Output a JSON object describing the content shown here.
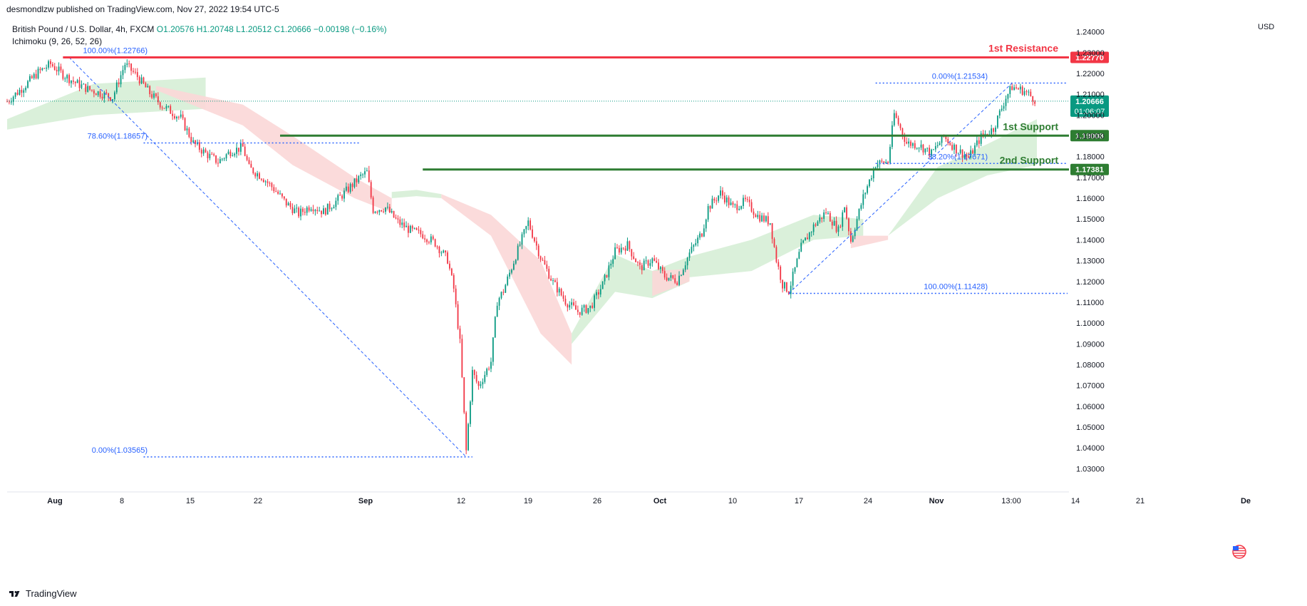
{
  "header": {
    "published_by": "desmondlzw published on TradingView.com, Nov 27, 2022 19:54 UTC-5"
  },
  "legend": {
    "symbol": "British Pound / U.S. Dollar, 4h, FXCM",
    "ohlc": "O1.20576  H1.20748  L1.20512  C1.20666  −0.00198 (−0.16%)",
    "indicator": "Ichimoku (9, 26, 52, 26)"
  },
  "currency": "USD",
  "brand": {
    "name": "TradingView",
    "icon": "tradingview-logo-icon"
  },
  "colors": {
    "up": "#089981",
    "down": "#f23645",
    "fib": "#2962ff",
    "resistance": "#f23645",
    "support": "#2e7d32",
    "cloud_bull": "#d6eed6",
    "cloud_bear": "#fbd7d7"
  },
  "chart_data": {
    "type": "candlestick",
    "y_axis": {
      "range": [
        1.025,
        1.245
      ],
      "ticks": [
        "1.24000",
        "1.23000",
        "1.22000",
        "1.21000",
        "1.20000",
        "1.19000",
        "1.18000",
        "1.17000",
        "1.16000",
        "1.15000",
        "1.14000",
        "1.13000",
        "1.12000",
        "1.11000",
        "1.10000",
        "1.09000",
        "1.08000",
        "1.07000",
        "1.06000",
        "1.05000",
        "1.04000",
        "1.03000"
      ],
      "tick_values": [
        1.24,
        1.23,
        1.22,
        1.21,
        1.2,
        1.19,
        1.18,
        1.17,
        1.16,
        1.15,
        1.14,
        1.13,
        1.12,
        1.11,
        1.1,
        1.09,
        1.08,
        1.07,
        1.06,
        1.05,
        1.04,
        1.03
      ]
    },
    "x_axis": {
      "labels": [
        "Aug",
        "8",
        "15",
        "22",
        "Sep",
        "12",
        "19",
        "26",
        "Oct",
        "10",
        "17",
        "24",
        "Nov",
        "13:00",
        "14",
        "21",
        "De"
      ],
      "bold": [
        "Aug",
        "Sep",
        "Oct",
        "Nov",
        "De"
      ]
    },
    "horizontal_levels": [
      {
        "name": "1st Resistance",
        "value": 1.2277,
        "price_label": "1.22770",
        "role": "resistance"
      },
      {
        "name": "1st Support",
        "value": 1.19008,
        "price_label": "1.19008",
        "role": "support"
      },
      {
        "name": "2nd Support",
        "value": 1.17381,
        "price_label": "1.17381",
        "role": "support"
      }
    ],
    "current_price": {
      "label": "1.20666",
      "countdown": "01:06:07",
      "value": 1.20666
    },
    "fib_down": [
      {
        "label": "100.00%(1.22766)",
        "value": 1.22766
      },
      {
        "label": "78.60%(1.18657)",
        "value": 1.18657
      },
      {
        "label": "0.00%(1.03565)",
        "value": 1.03565
      }
    ],
    "fib_up": [
      {
        "label": "0.00%(1.21534)",
        "value": 1.21534
      },
      {
        "label": "38.20%(1.17671)",
        "value": 1.17671
      },
      {
        "label": "100.00%(1.11428)",
        "value": 1.11428
      }
    ],
    "close_path": [
      [
        0,
        1.2065
      ],
      [
        3,
        1.2145
      ],
      [
        5,
        1.2205
      ],
      [
        7,
        1.2245
      ],
      [
        9,
        1.2195
      ],
      [
        11,
        1.2155
      ],
      [
        13,
        1.2125
      ],
      [
        15,
        1.2105
      ],
      [
        17,
        1.2085
      ],
      [
        19,
        1.2245
      ],
      [
        21,
        1.2185
      ],
      [
        23,
        1.2105
      ],
      [
        25,
        1.2045
      ],
      [
        27,
        1.2005
      ],
      [
        28,
        1.1985
      ],
      [
        30,
        1.1865
      ],
      [
        32,
        1.1815
      ],
      [
        34,
        1.1775
      ],
      [
        36,
        1.1825
      ],
      [
        38,
        1.1845
      ],
      [
        39,
        1.1745
      ],
      [
        41,
        1.1705
      ],
      [
        43,
        1.1645
      ],
      [
        45,
        1.1575
      ],
      [
        47,
        1.1525
      ],
      [
        49,
        1.1565
      ],
      [
        51,
        1.1535
      ],
      [
        53,
        1.1585
      ],
      [
        55,
        1.1645
      ],
      [
        57,
        1.1705
      ],
      [
        58,
        1.1725
      ],
      [
        59,
        1.1545
      ],
      [
        61,
        1.1555
      ],
      [
        63,
        1.1485
      ],
      [
        65,
        1.1445
      ],
      [
        67,
        1.1425
      ],
      [
        69,
        1.1385
      ],
      [
        71,
        1.1305
      ],
      [
        72,
        1.1165
      ],
      [
        73,
        1.0905
      ],
      [
        74,
        1.0385
      ],
      [
        75,
        1.0765
      ],
      [
        76,
        1.0695
      ],
      [
        78,
        1.0815
      ],
      [
        79,
        1.1105
      ],
      [
        80,
        1.1155
      ],
      [
        82,
        1.1325
      ],
      [
        84,
        1.1485
      ],
      [
        86,
        1.1315
      ],
      [
        88,
        1.1195
      ],
      [
        90,
        1.1105
      ],
      [
        92,
        1.1055
      ],
      [
        94,
        1.1075
      ],
      [
        96,
        1.1185
      ],
      [
        98,
        1.1345
      ],
      [
        100,
        1.1375
      ],
      [
        102,
        1.1265
      ],
      [
        104,
        1.1305
      ],
      [
        106,
        1.1225
      ],
      [
        108,
        1.1205
      ],
      [
        110,
        1.1335
      ],
      [
        112,
        1.1435
      ],
      [
        113,
        1.1555
      ],
      [
        115,
        1.1625
      ],
      [
        117,
        1.1555
      ],
      [
        119,
        1.1585
      ],
      [
        121,
        1.1515
      ],
      [
        123,
        1.1485
      ],
      [
        124,
        1.1305
      ],
      [
        125,
        1.1185
      ],
      [
        126,
        1.1155
      ],
      [
        128,
        1.1365
      ],
      [
        130,
        1.1465
      ],
      [
        132,
        1.1535
      ],
      [
        134,
        1.1445
      ],
      [
        135,
        1.1565
      ],
      [
        136,
        1.1395
      ],
      [
        138,
        1.1605
      ],
      [
        140,
        1.1765
      ],
      [
        142,
        1.1775
      ],
      [
        143,
        1.2005
      ],
      [
        145,
        1.1865
      ],
      [
        147,
        1.1855
      ],
      [
        149,
        1.1815
      ],
      [
        151,
        1.1895
      ],
      [
        153,
        1.1835
      ],
      [
        155,
        1.1795
      ],
      [
        157,
        1.1895
      ],
      [
        159,
        1.1935
      ],
      [
        161,
        1.2085
      ],
      [
        162,
        1.2135
      ],
      [
        164,
        1.2115
      ],
      [
        166,
        1.2067
      ]
    ],
    "cloud_segments": [
      {
        "kind": "bull",
        "x": [
          0,
          14,
          32
        ],
        "top": [
          1.198,
          1.215,
          1.218
        ],
        "bottom": [
          1.193,
          1.2,
          1.203
        ]
      },
      {
        "kind": "bear",
        "x": [
          24,
          38,
          46,
          56,
          62
        ],
        "top": [
          1.214,
          1.205,
          1.19,
          1.17,
          1.16
        ],
        "bottom": [
          1.212,
          1.195,
          1.176,
          1.16,
          1.153
        ]
      },
      {
        "kind": "bull",
        "x": [
          62,
          66,
          70
        ],
        "top": [
          1.163,
          1.164,
          1.162
        ],
        "bottom": [
          1.16,
          1.161,
          1.16
        ]
      },
      {
        "kind": "bear",
        "x": [
          70,
          78,
          86,
          91
        ],
        "top": [
          1.162,
          1.152,
          1.13,
          1.095
        ],
        "bottom": [
          1.16,
          1.142,
          1.095,
          1.08
        ]
      },
      {
        "kind": "bull",
        "x": [
          91,
          98,
          104,
          110
        ],
        "top": [
          1.095,
          1.133,
          1.125,
          1.132
        ],
        "bottom": [
          1.09,
          1.115,
          1.112,
          1.12
        ]
      },
      {
        "kind": "bear",
        "x": [
          104,
          110
        ],
        "top": [
          1.125,
          1.126
        ],
        "bottom": [
          1.113,
          1.12
        ]
      },
      {
        "kind": "bull",
        "x": [
          110,
          120,
          130,
          138
        ],
        "top": [
          1.132,
          1.14,
          1.152,
          1.15
        ],
        "bottom": [
          1.122,
          1.125,
          1.14,
          1.142
        ]
      },
      {
        "kind": "bear",
        "x": [
          136,
          142
        ],
        "top": [
          1.142,
          1.142
        ],
        "bottom": [
          1.136,
          1.14
        ]
      },
      {
        "kind": "bull",
        "x": [
          142,
          150,
          158,
          166
        ],
        "top": [
          1.142,
          1.175,
          1.186,
          1.198
        ],
        "bottom": [
          1.142,
          1.16,
          1.171,
          1.176
        ]
      }
    ]
  }
}
